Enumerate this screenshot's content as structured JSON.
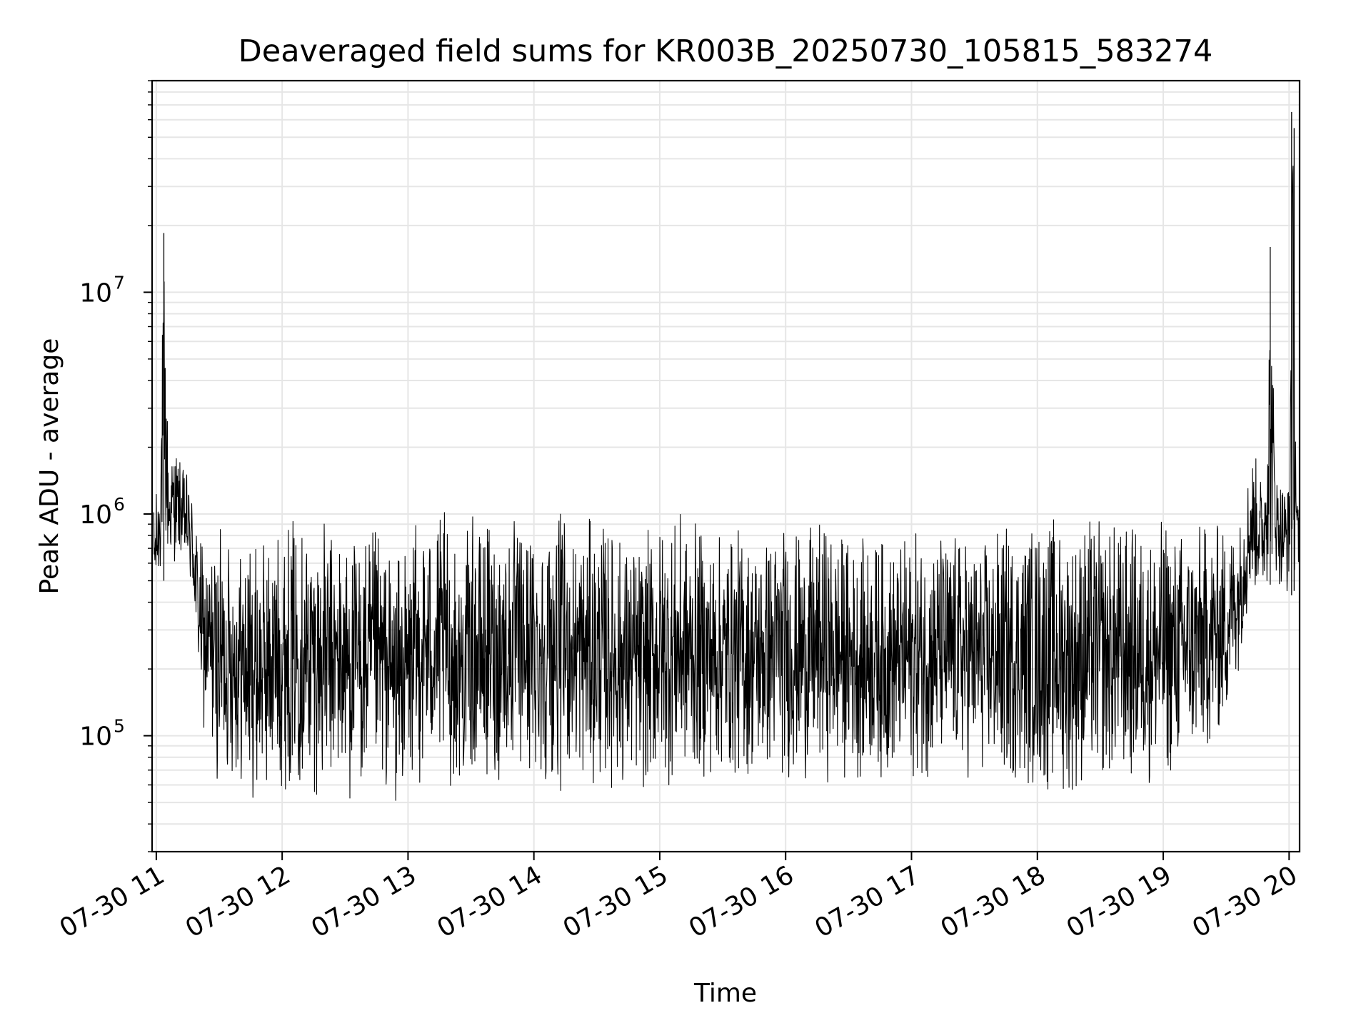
{
  "chart_data": {
    "type": "line",
    "title": "Deaveraged field sums for KR003B_20250730_105815_583274",
    "xlabel": "Time",
    "ylabel": "Peak ADU - average",
    "yscale": "log",
    "grid": true,
    "line_color": "#000000",
    "grid_color": "#e6e6e6",
    "xlim": [
      "2025-07-30 10:58",
      "2025-07-30 20:05"
    ],
    "ylim": [
      30000,
      90000000
    ],
    "x_ticks": [
      "07-30 11",
      "07-30 12",
      "07-30 13",
      "07-30 14",
      "07-30 15",
      "07-30 16",
      "07-30 17",
      "07-30 18",
      "07-30 19",
      "07-30 20"
    ],
    "x_tick_hours": [
      11,
      12,
      13,
      14,
      15,
      16,
      17,
      18,
      19,
      20
    ],
    "y_ticks": [
      {
        "value": 100000,
        "base": "10",
        "exp": "5"
      },
      {
        "value": 1000000,
        "base": "10",
        "exp": "6"
      },
      {
        "value": 10000000,
        "base": "10",
        "exp": "7"
      }
    ],
    "series": [
      {
        "x_hours": [
          10.98,
          11.02,
          11.06,
          11.1,
          11.15,
          11.2,
          11.25,
          11.3,
          11.33,
          11.38,
          11.45,
          11.5,
          11.6,
          11.7,
          11.8,
          11.9,
          12.0,
          12.1,
          12.2,
          12.3,
          12.4,
          12.5,
          12.6,
          12.7,
          12.8,
          12.9,
          13.0,
          13.1,
          13.2,
          13.3,
          13.4,
          13.5,
          13.6,
          13.7,
          13.8,
          13.9,
          14.0,
          14.1,
          14.2,
          14.3,
          14.4,
          14.5,
          14.6,
          14.7,
          14.8,
          14.9,
          15.0,
          15.1,
          15.2,
          15.3,
          15.4,
          15.5,
          15.6,
          15.7,
          15.8,
          15.9,
          16.0,
          16.1,
          16.2,
          16.3,
          16.4,
          16.5,
          16.6,
          16.7,
          16.8,
          16.9,
          17.0,
          17.1,
          17.2,
          17.3,
          17.4,
          17.5,
          17.6,
          17.7,
          17.8,
          17.9,
          18.0,
          18.1,
          18.2,
          18.3,
          18.4,
          18.5,
          18.6,
          18.7,
          18.8,
          18.9,
          19.0,
          19.1,
          19.2,
          19.3,
          19.4,
          19.5,
          19.6,
          19.7,
          19.8,
          19.85,
          19.9,
          19.95,
          20.0,
          20.02,
          20.04,
          20.06,
          20.08
        ],
        "lows": [
          350000,
          450000,
          500000,
          550000,
          600000,
          600000,
          480000,
          300000,
          170000,
          90000,
          70000,
          55000,
          60000,
          50000,
          48000,
          50000,
          55000,
          55000,
          52000,
          50000,
          50000,
          48000,
          47000,
          48000,
          50000,
          45000,
          50000,
          55000,
          60000,
          55000,
          55000,
          60000,
          55000,
          55000,
          60000,
          58000,
          55000,
          55000,
          55000,
          55000,
          55000,
          55000,
          55000,
          52000,
          52000,
          52000,
          55000,
          55000,
          60000,
          60000,
          60000,
          60000,
          58000,
          60000,
          58000,
          60000,
          60000,
          60000,
          60000,
          60000,
          60000,
          60000,
          60000,
          62000,
          60000,
          60000,
          60000,
          60000,
          60000,
          62000,
          60000,
          60000,
          58000,
          55000,
          55000,
          55000,
          52000,
          50000,
          50000,
          50000,
          55000,
          55000,
          55000,
          55000,
          55000,
          55000,
          55000,
          60000,
          65000,
          70000,
          80000,
          100000,
          200000,
          400000,
          420000,
          480000,
          500000,
          420000,
          400000,
          430000,
          450000,
          470000,
          500000
        ],
        "highs": [
          1200000,
          1500000,
          18500000,
          1800000,
          2300000,
          1700000,
          1600000,
          1400000,
          900000,
          750000,
          850000,
          900000,
          900000,
          850000,
          800000,
          900000,
          1000000,
          1100000,
          1100000,
          1000000,
          950000,
          950000,
          900000,
          900000,
          900000,
          700000,
          800000,
          1100000,
          1100000,
          1050000,
          700000,
          1000000,
          1000000,
          1100000,
          1050000,
          1000000,
          1100000,
          1100000,
          1050000,
          1100000,
          1000000,
          1000000,
          1000000,
          900000,
          850000,
          850000,
          1100000,
          1100000,
          1000000,
          950000,
          900000,
          900000,
          950000,
          900000,
          900000,
          1000000,
          1000000,
          900000,
          900000,
          1000000,
          950000,
          900000,
          800000,
          900000,
          850000,
          800000,
          900000,
          900000,
          950000,
          900000,
          900000,
          850000,
          850000,
          950000,
          1000000,
          1000000,
          1100000,
          1100000,
          1050000,
          1000000,
          1100000,
          1000000,
          1050000,
          1000000,
          1000000,
          1000000,
          1050000,
          1000000,
          1000000,
          1000000,
          1000000,
          1000000,
          1000000,
          2200000,
          1500000,
          16000000,
          1700000,
          1600000,
          1500000,
          65000000,
          55000000,
          1600000,
          1000000
        ]
      }
    ]
  }
}
